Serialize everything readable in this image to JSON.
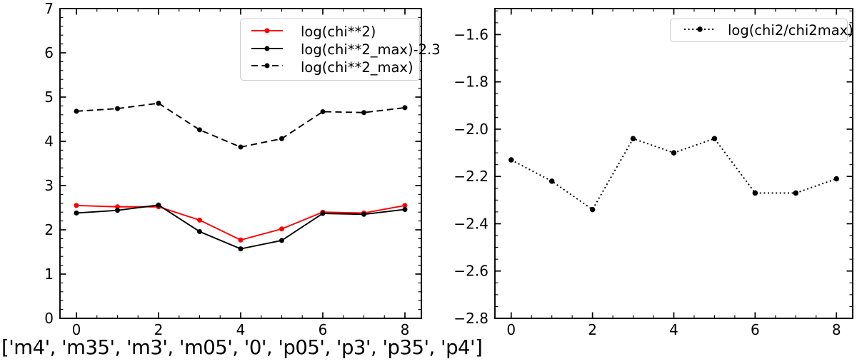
{
  "figure": {
    "caption": "['m4', 'm35', 'm3', 'm05', '0', 'p05', 'p3', 'p35', 'p4']",
    "background": "#ffffff",
    "text_color": "#000000"
  },
  "chart_data": [
    {
      "type": "line",
      "title": "",
      "xlabel": "",
      "ylabel": "",
      "x": [
        0,
        1,
        2,
        3,
        4,
        5,
        6,
        7,
        8
      ],
      "series": [
        {
          "name": "log(chi**2)",
          "color": "#ff0000",
          "line_style": "solid",
          "marker": "circle",
          "marker_size": 7,
          "values": [
            2.55,
            2.52,
            2.52,
            2.22,
            1.77,
            2.02,
            2.4,
            2.38,
            2.55
          ]
        },
        {
          "name": "log(chi**2_max)-2.3",
          "color": "#000000",
          "line_style": "solid",
          "marker": "circle",
          "marker_size": 7,
          "values": [
            2.38,
            2.44,
            2.56,
            1.96,
            1.57,
            1.76,
            2.37,
            2.35,
            2.46
          ]
        },
        {
          "name": "log(chi**2_max)",
          "color": "#000000",
          "line_style": "dashed",
          "marker": "circle",
          "marker_size": 7,
          "values": [
            4.68,
            4.74,
            4.86,
            4.26,
            3.87,
            4.06,
            4.67,
            4.65,
            4.76
          ]
        }
      ],
      "xlim": [
        -0.4,
        8.4
      ],
      "ylim": [
        0,
        7
      ],
      "xticks": [
        0,
        2,
        4,
        6,
        8
      ],
      "xtick_labels": [
        "0",
        "2",
        "4",
        "6",
        "8"
      ],
      "yticks": [
        0,
        1,
        2,
        3,
        4,
        5,
        6,
        7
      ],
      "ytick_labels": [
        "0",
        "1",
        "2",
        "3",
        "4",
        "5",
        "6",
        "7"
      ],
      "minor_x_step": 0.5,
      "minor_y_step": 0.2,
      "grid": false,
      "legend_position": "upper right"
    },
    {
      "type": "line",
      "title": "",
      "xlabel": "",
      "ylabel": "",
      "x": [
        0,
        1,
        2,
        3,
        4,
        5,
        6,
        7,
        8
      ],
      "series": [
        {
          "name": "log(chi2/chi2max)",
          "color": "#000000",
          "line_style": "dotted",
          "marker": "circle",
          "marker_size": 7.5,
          "values": [
            -2.13,
            -2.22,
            -2.34,
            -2.04,
            -2.1,
            -2.04,
            -2.27,
            -2.27,
            -2.21
          ]
        }
      ],
      "xlim": [
        -0.4,
        8.4
      ],
      "ylim": [
        -2.8,
        -1.49
      ],
      "xticks": [
        0,
        2,
        4,
        6,
        8
      ],
      "xtick_labels": [
        "0",
        "2",
        "4",
        "6",
        "8"
      ],
      "yticks": [
        -2.8,
        -2.6,
        -2.4,
        -2.2,
        -2.0,
        -1.8,
        -1.6
      ],
      "ytick_labels": [
        "−2.8",
        "−2.6",
        "−2.4",
        "−2.2",
        "−2.0",
        "−1.8",
        "−1.6"
      ],
      "minor_x_step": 0.5,
      "minor_y_step": 0.05,
      "grid": false,
      "legend_position": "upper right"
    }
  ]
}
